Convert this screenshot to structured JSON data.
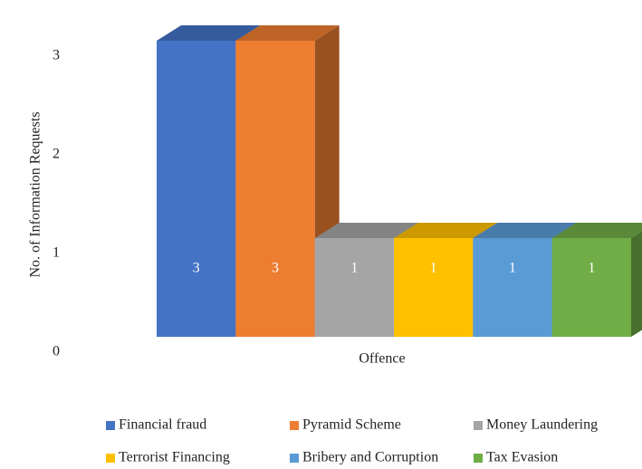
{
  "chart_data": {
    "type": "bar3d",
    "y_label": "No. of Information Requests",
    "categories": [
      "Offence"
    ],
    "series": [
      {
        "name": "Financial fraud",
        "color": "#4472c4",
        "values": [
          3
        ]
      },
      {
        "name": "Pyramid Scheme",
        "color": "#ed7d31",
        "values": [
          3
        ]
      },
      {
        "name": "Money Laundering",
        "color": "#a5a5a5",
        "values": [
          1
        ]
      },
      {
        "name": "Terrorist Financing",
        "color": "#ffc000",
        "values": [
          1
        ]
      },
      {
        "name": "Bribery and Corruption",
        "color": "#5b9bd5",
        "values": [
          1
        ]
      },
      {
        "name": "Tax Evasion",
        "color": "#70ad47",
        "values": [
          1
        ]
      }
    ],
    "ylim": [
      0,
      3
    ],
    "yticks": [
      0,
      1,
      2,
      3
    ],
    "legend": "bottom",
    "data_labels": true
  }
}
